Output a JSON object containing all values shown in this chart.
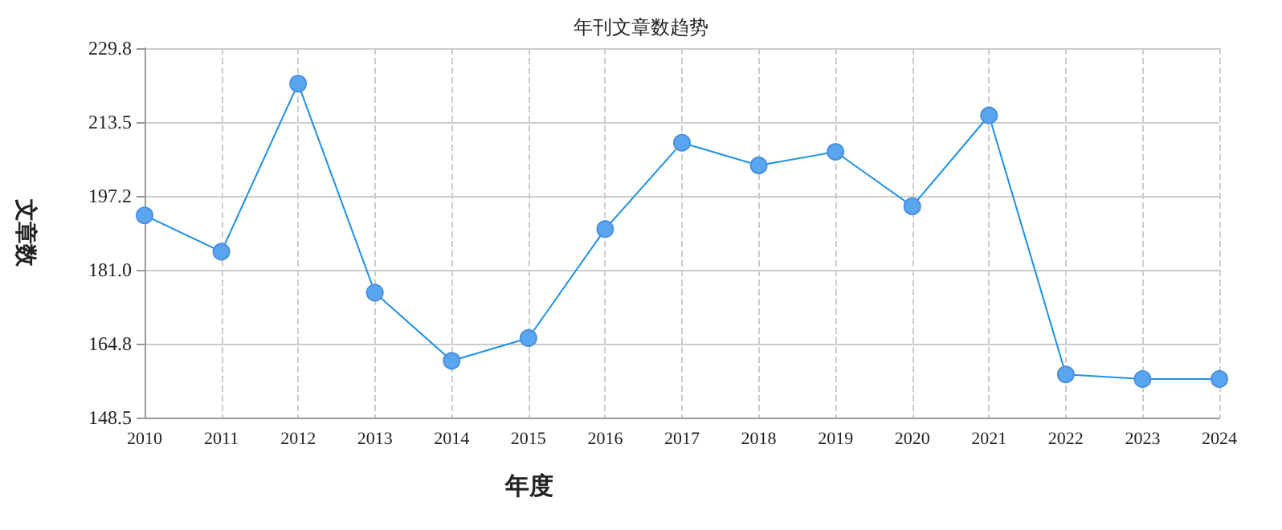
{
  "chart_data": {
    "type": "line",
    "title": "年刊文章数趋势",
    "xlabel": "年度",
    "ylabel": "文章数",
    "categories": [
      "2010",
      "2011",
      "2012",
      "2013",
      "2014",
      "2015",
      "2016",
      "2017",
      "2018",
      "2019",
      "2020",
      "2021",
      "2022",
      "2023",
      "2024"
    ],
    "series": [
      {
        "color": "#1e90e8",
        "values": [
          193,
          185,
          222,
          176,
          161,
          166,
          190,
          209,
          204,
          207,
          195,
          215,
          158,
          157,
          157
        ]
      }
    ],
    "ylim": [
      148.5,
      229.8
    ],
    "yticks": [
      148.5,
      164.8,
      {
        "value": 181,
        "label": "181.0"
      },
      197.2,
      213.5,
      229.8
    ],
    "grid": true,
    "marker": "circle",
    "line_style": "solid"
  }
}
